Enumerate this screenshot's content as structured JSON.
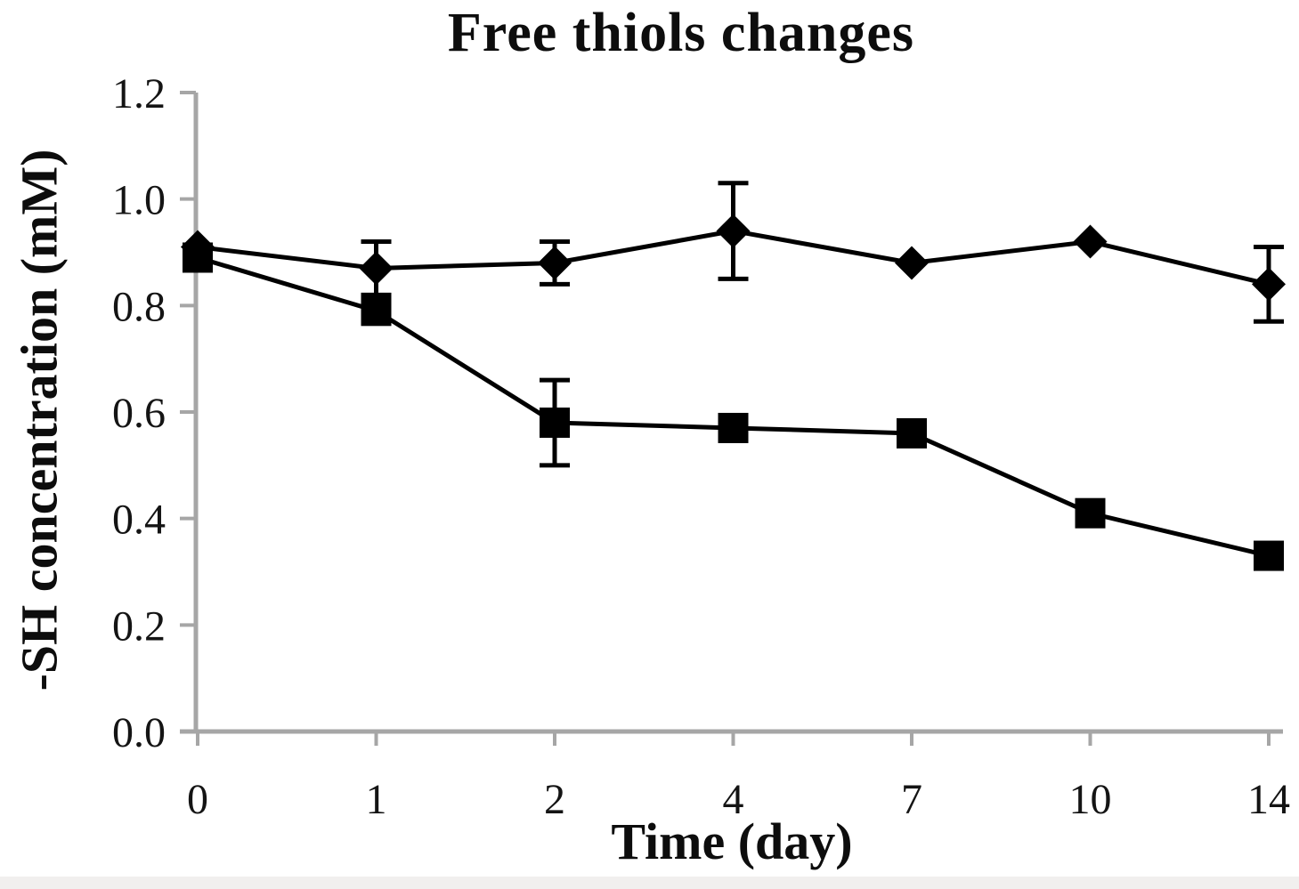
{
  "page": {
    "background_color": "#ffffff",
    "bottom_strip_color": "#f1efee"
  },
  "chart_data": {
    "type": "line",
    "title": "Free thiols changes",
    "xlabel": "Time (day)",
    "ylabel": "-SH concentration (mM)",
    "categories": [
      "0",
      "1",
      "2",
      "4",
      "7",
      "10",
      "14"
    ],
    "y_tick_labels": [
      "0.0",
      "0.2",
      "0.4",
      "0.6",
      "0.8",
      "1.0",
      "1.2"
    ],
    "ylim": [
      0.0,
      1.2
    ],
    "grid": false,
    "legend_position": "none",
    "axis_color": "#a6a6a6",
    "series_color": "#000000",
    "series": [
      {
        "name": "diamond series",
        "marker": "diamond",
        "values": [
          0.91,
          0.87,
          0.88,
          0.94,
          0.88,
          0.92,
          0.84
        ],
        "errors": [
          0,
          0.05,
          0.04,
          0.09,
          0,
          0,
          0.07
        ]
      },
      {
        "name": "square series",
        "marker": "square",
        "values": [
          0.89,
          0.79,
          0.58,
          0.57,
          0.56,
          0.41,
          0.33
        ],
        "errors": [
          0,
          0,
          0.08,
          0,
          0,
          0,
          0
        ]
      }
    ]
  }
}
